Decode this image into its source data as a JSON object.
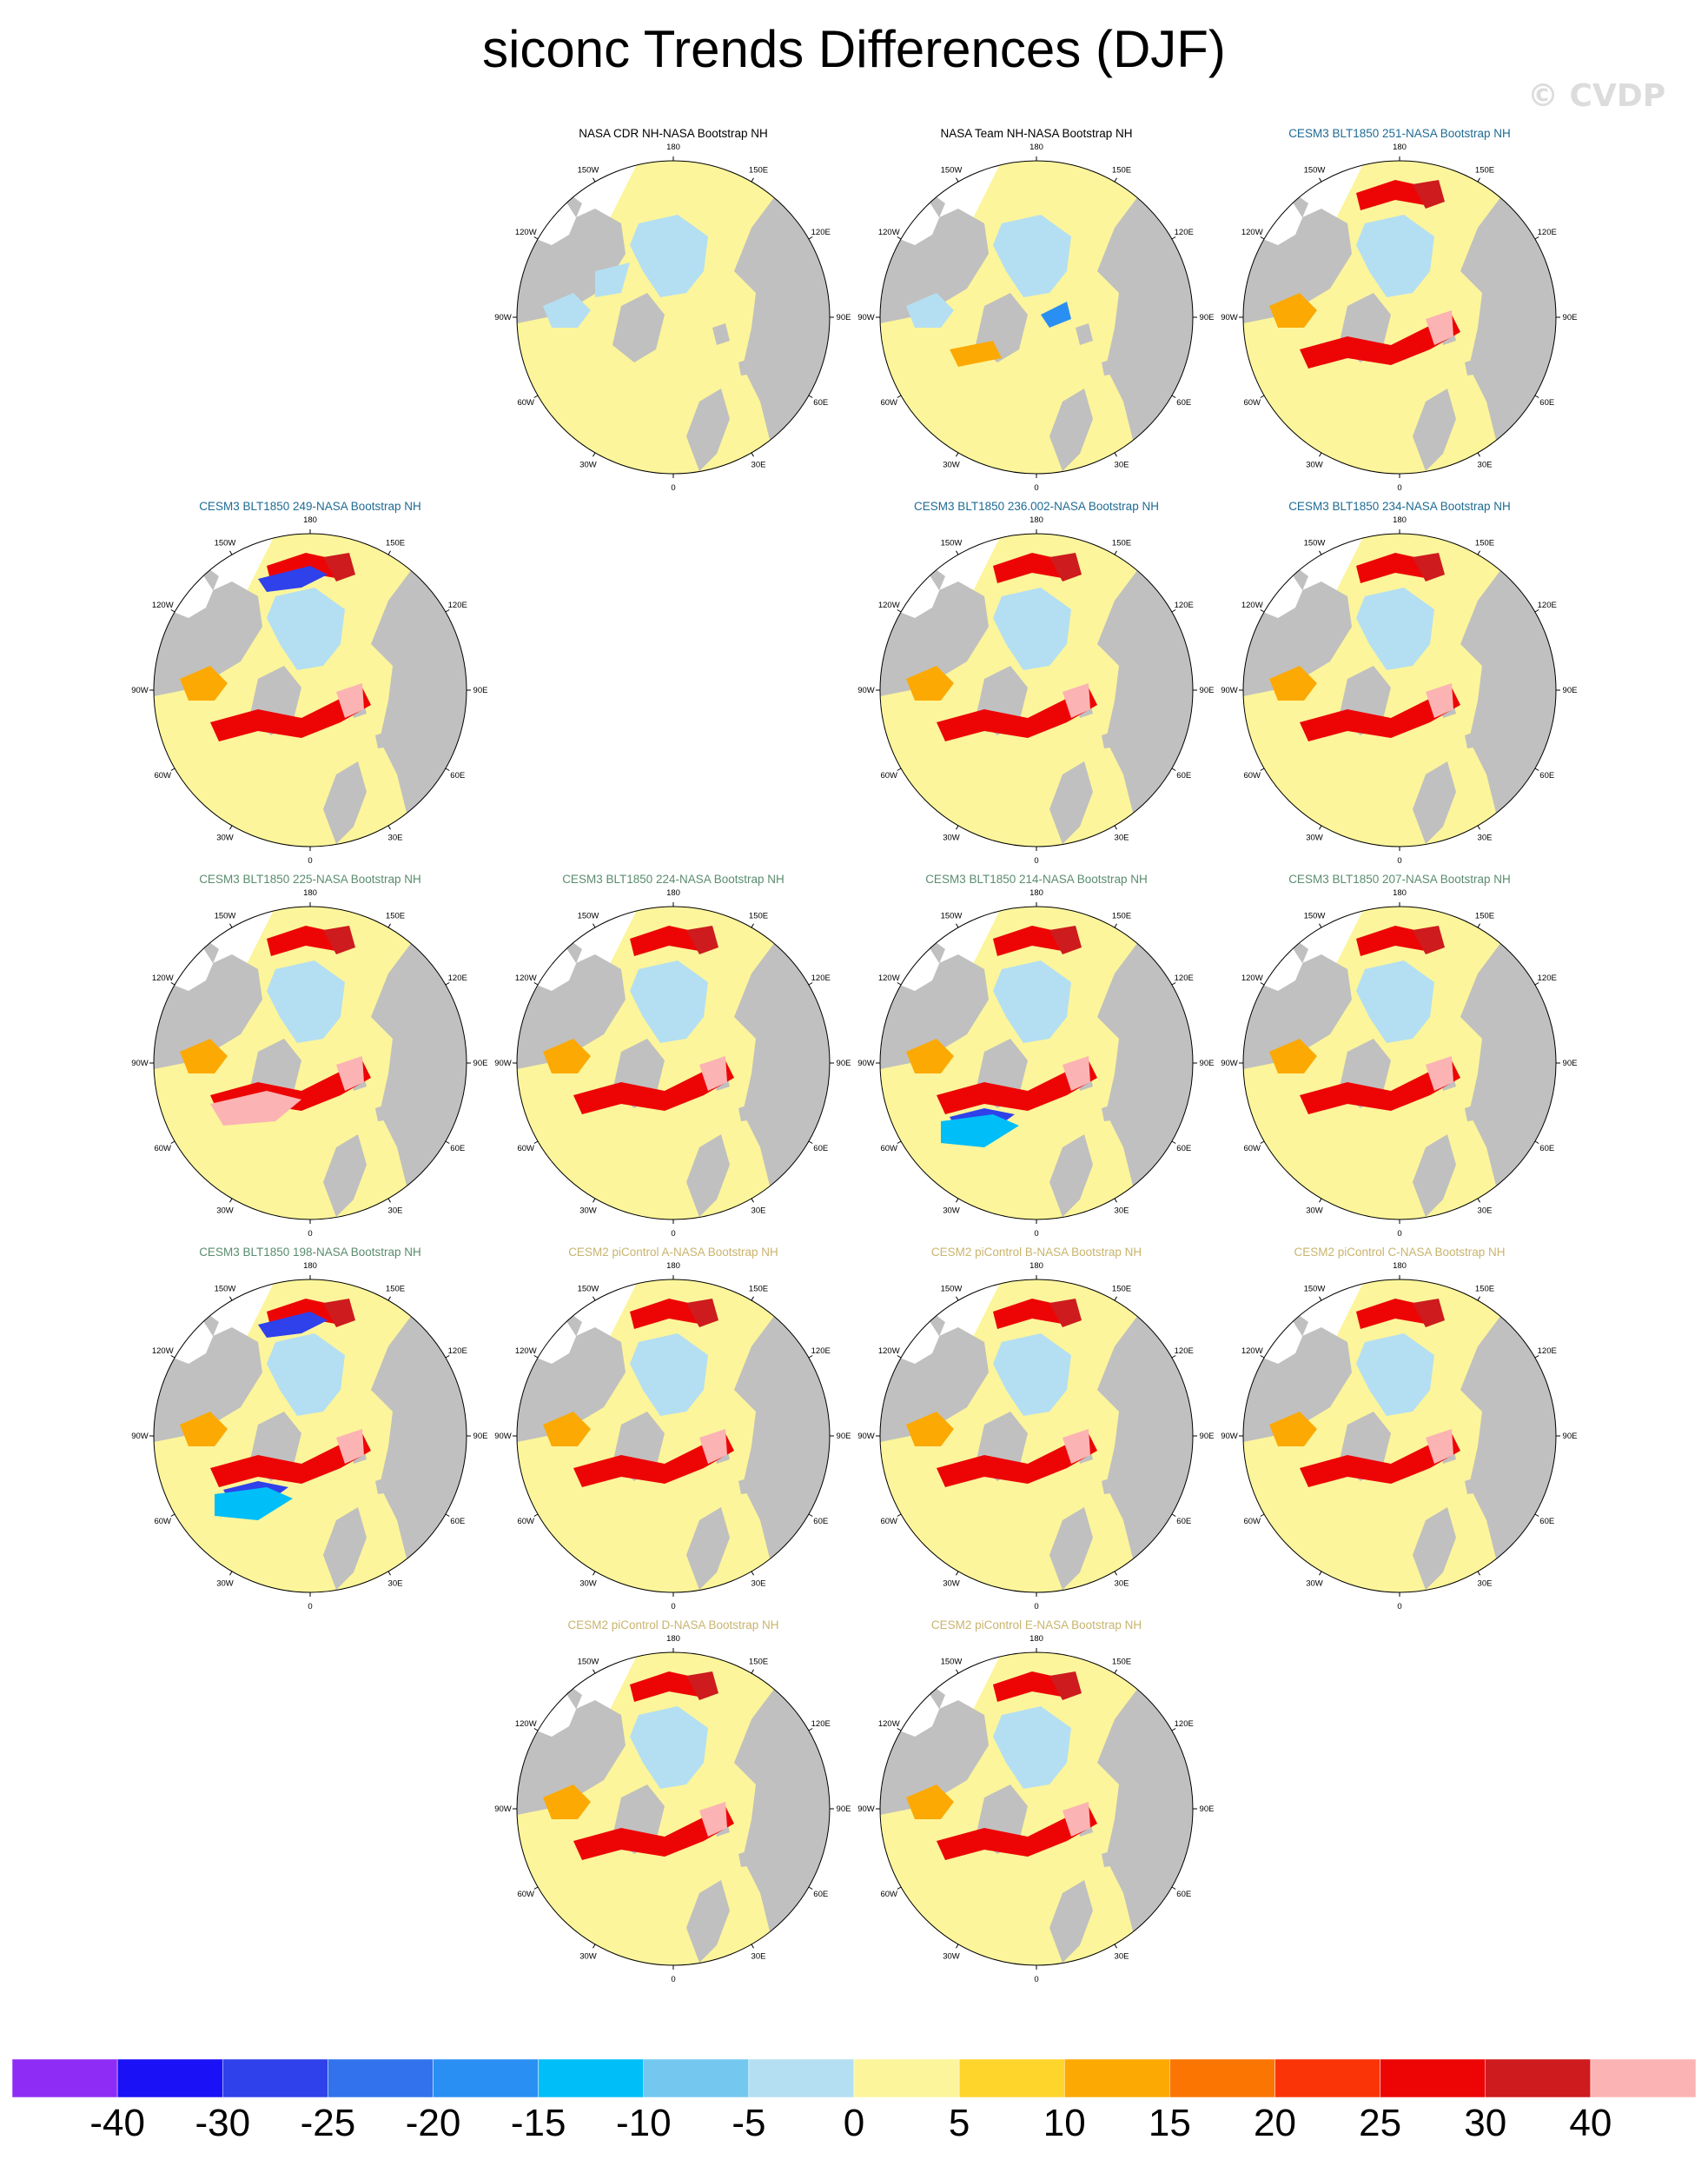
{
  "title": "siconc Trends Differences (DJF)",
  "watermark": "© CVDP",
  "colors": {
    "land": "#c0c0c0",
    "missing": "#ffffff",
    "title_black": "#000000",
    "title_cesm3_dark": "#1f6b93",
    "title_cesm3_green": "#5a8c6e",
    "title_cesm2": "#c9b46e"
  },
  "longitude_labels": [
    "180",
    "150E",
    "120E",
    "90E",
    "60E",
    "30E",
    "0",
    "30W",
    "60W",
    "90W",
    "120W",
    "150W"
  ],
  "panels": [
    {
      "title": "NASA CDR NH-NASA Bootstrap NH",
      "title_color": "#000000",
      "pattern": "cdr"
    },
    {
      "title": "NASA Team NH-NASA Bootstrap NH",
      "title_color": "#000000",
      "pattern": "team"
    },
    {
      "title": "CESM3 BLT1850 251-NASA Bootstrap NH",
      "title_color": "#1f6b93",
      "pattern": "model"
    },
    {
      "title": "CESM3 BLT1850 249-NASA Bootstrap NH",
      "title_color": "#1f6b93",
      "pattern": "model_blue_pac"
    },
    {
      "title": "CESM3 BLT1850 236.002-NASA Bootstrap NH",
      "title_color": "#1f6b93",
      "pattern": "model"
    },
    {
      "title": "CESM3 BLT1850 234-NASA Bootstrap NH",
      "title_color": "#1f6b93",
      "pattern": "model"
    },
    {
      "title": "CESM3 BLT1850 225-NASA Bootstrap NH",
      "title_color": "#5a8c6e",
      "pattern": "model_pink"
    },
    {
      "title": "CESM3 BLT1850 224-NASA Bootstrap NH",
      "title_color": "#5a8c6e",
      "pattern": "model"
    },
    {
      "title": "CESM3 BLT1850 214-NASA Bootstrap NH",
      "title_color": "#5a8c6e",
      "pattern": "model_blue_atl"
    },
    {
      "title": "CESM3 BLT1850 207-NASA Bootstrap NH",
      "title_color": "#5a8c6e",
      "pattern": "model"
    },
    {
      "title": "CESM3 BLT1850 198-NASA Bootstrap NH",
      "title_color": "#5a8c6e",
      "pattern": "model_blue_both"
    },
    {
      "title": "CESM2 piControl A-NASA Bootstrap NH",
      "title_color": "#c9b46e",
      "pattern": "model"
    },
    {
      "title": "CESM2 piControl B-NASA Bootstrap NH",
      "title_color": "#c9b46e",
      "pattern": "model"
    },
    {
      "title": "CESM2 piControl C-NASA Bootstrap NH",
      "title_color": "#c9b46e",
      "pattern": "model"
    },
    {
      "title": "CESM2 piControl D-NASA Bootstrap NH",
      "title_color": "#c9b46e",
      "pattern": "model"
    },
    {
      "title": "CESM2 piControl E-NASA Bootstrap NH",
      "title_color": "#c9b46e",
      "pattern": "model"
    }
  ],
  "colorbar": {
    "labels": [
      "-40",
      "-30",
      "-25",
      "-20",
      "-15",
      "-10",
      "-5",
      "0",
      "5",
      "10",
      "15",
      "20",
      "25",
      "30",
      "40"
    ],
    "colors": [
      "#8e2cf5",
      "#1a11f7",
      "#2f41ea",
      "#3272ec",
      "#2a8ff2",
      "#00bef8",
      "#74c8ef",
      "#b4dff2",
      "#fcf59b",
      "#fdd52b",
      "#fca904",
      "#fb7503",
      "#fb3408",
      "#ed0506",
      "#cd1b1e",
      "#fcb3b3"
    ]
  }
}
